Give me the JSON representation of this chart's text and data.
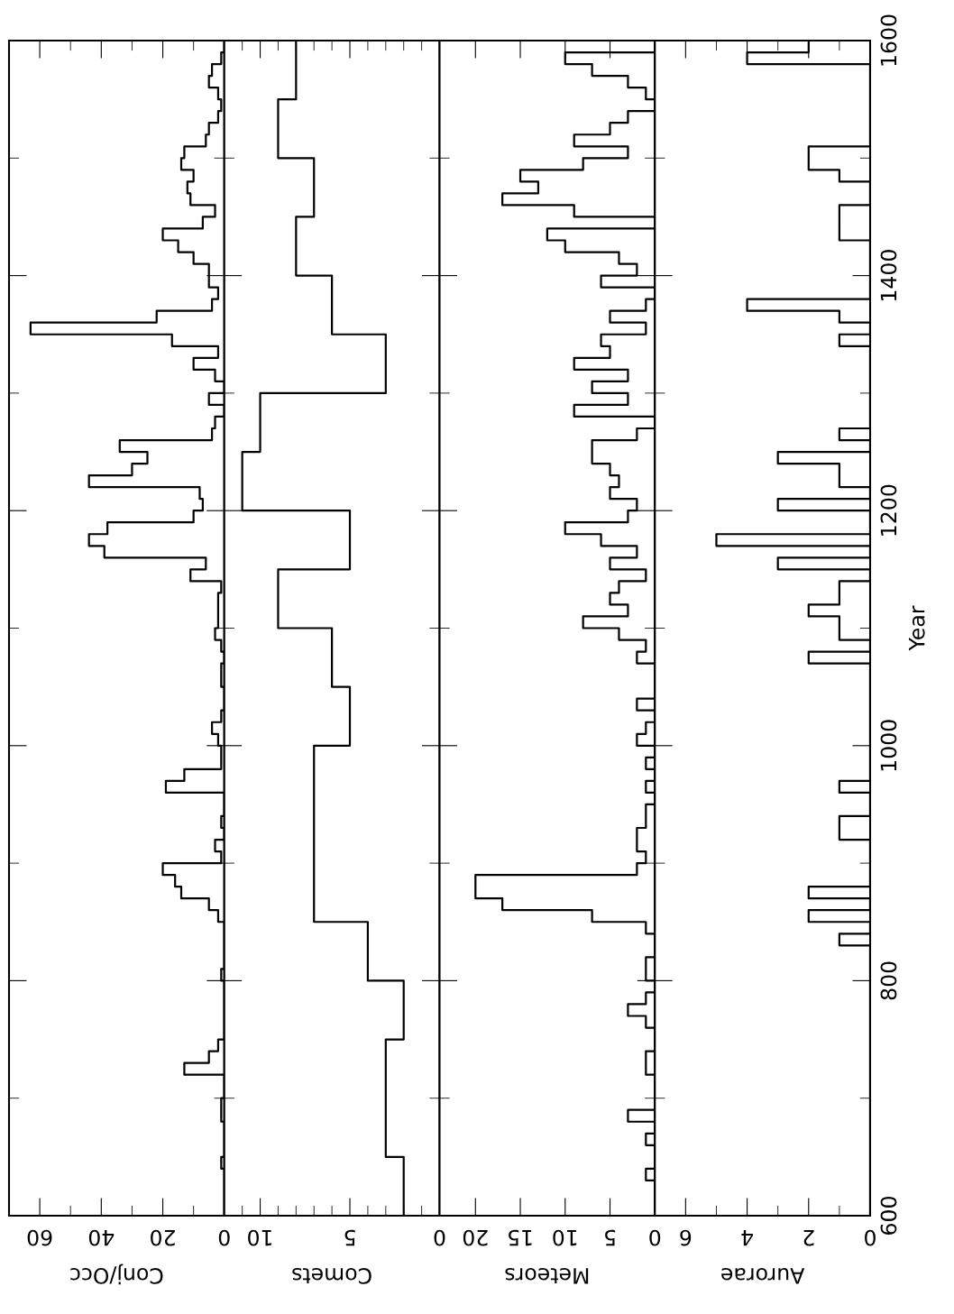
{
  "chart_data": [
    {
      "type": "histogram",
      "orientation": "horizontal",
      "xlabel": "Conj/Occ",
      "color": "#000000",
      "tick_labels": "x",
      "bins": [
        600,
        610,
        620,
        630,
        640,
        650,
        660,
        670,
        680,
        690,
        700,
        710,
        720,
        730,
        740,
        750,
        760,
        770,
        780,
        790,
        800,
        810,
        820,
        830,
        840,
        850,
        860,
        870,
        880,
        890,
        900,
        910,
        920,
        930,
        940,
        950,
        960,
        970,
        980,
        990,
        1000,
        1010,
        1020,
        1030,
        1040,
        1050,
        1060,
        1070,
        1080,
        1090,
        1100,
        1110,
        1120,
        1130,
        1140,
        1150,
        1160,
        1170,
        1180,
        1190,
        1200,
        1210,
        1220,
        1230,
        1240,
        1250,
        1260,
        1270,
        1280,
        1290,
        1300,
        1310,
        1320,
        1330,
        1340,
        1350,
        1360,
        1370,
        1380,
        1390,
        1400,
        1410,
        1420,
        1430,
        1440,
        1450,
        1460,
        1470,
        1480,
        1490,
        1500,
        1510,
        1520,
        1530,
        1540,
        1550,
        1560,
        1570,
        1580,
        1590,
        1600
      ],
      "values": [
        0,
        0,
        0,
        0,
        1,
        0,
        0,
        0,
        1,
        1,
        0,
        0,
        13,
        5,
        2,
        0,
        0,
        0,
        0,
        0,
        1,
        0,
        0,
        0,
        0,
        2,
        5,
        14,
        16,
        20,
        1,
        3,
        0,
        1,
        0,
        0,
        19,
        13,
        1,
        1,
        2,
        4,
        1,
        0,
        0,
        1,
        1,
        0,
        1,
        3,
        2,
        2,
        2,
        1,
        11,
        6,
        39,
        44,
        38,
        10,
        7,
        8,
        44,
        30,
        25,
        34,
        4,
        3,
        0,
        5,
        0,
        3,
        10,
        2,
        17,
        63,
        22,
        4,
        2,
        5,
        5,
        10,
        15,
        20,
        7,
        3,
        11,
        12,
        10,
        14,
        13,
        6,
        5,
        2,
        1,
        2,
        5,
        4,
        1,
        0
      ],
      "xlim": [
        70,
        0
      ],
      "xticks": [
        0,
        {
          "value": 10,
          "label": null
        },
        20,
        {
          "value": 30,
          "label": null
        },
        40,
        {
          "value": 50,
          "label": null
        },
        60
      ],
      "ylim": [
        600,
        1600
      ],
      "yticks": [
        600,
        {
          "value": 700,
          "label": null
        },
        800,
        {
          "value": 900,
          "label": null
        },
        1000,
        {
          "value": 1100,
          "label": null
        },
        1200,
        {
          "value": 1300,
          "label": null
        },
        1400,
        {
          "value": 1500,
          "label": null
        },
        1600
      ]
    },
    {
      "type": "histogram",
      "orientation": "horizontal",
      "xlabel": "Comets",
      "color": "#000000",
      "tick_labels": "x",
      "bins": [
        600,
        650,
        700,
        750,
        800,
        850,
        900,
        950,
        1000,
        1050,
        1100,
        1150,
        1200,
        1250,
        1300,
        1350,
        1400,
        1450,
        1500,
        1550,
        1600
      ],
      "values": [
        2,
        3,
        3,
        2,
        4,
        7,
        7,
        7,
        5,
        6,
        9,
        5,
        11,
        10,
        3,
        6,
        8,
        7,
        9,
        8
      ],
      "xlim": [
        12,
        0
      ],
      "xticks": [
        0,
        {
          "value": 1,
          "label": null
        },
        {
          "value": 2,
          "label": null
        },
        {
          "value": 3,
          "label": null
        },
        {
          "value": 4,
          "label": null
        },
        5,
        {
          "value": 6,
          "label": null
        },
        {
          "value": 7,
          "label": null
        },
        {
          "value": 8,
          "label": null
        },
        {
          "value": 9,
          "label": null
        },
        10,
        {
          "value": 11,
          "label": null
        }
      ],
      "ylim": [
        600,
        1600
      ],
      "yticks": [
        600,
        {
          "value": 700,
          "label": null
        },
        800,
        {
          "value": 900,
          "label": null
        },
        1000,
        {
          "value": 1100,
          "label": null
        },
        1200,
        {
          "value": 1300,
          "label": null
        },
        1400,
        {
          "value": 1500,
          "label": null
        },
        1600
      ]
    },
    {
      "type": "histogram",
      "orientation": "horizontal",
      "xlabel": "Meteors",
      "color": "#000000",
      "tick_labels": "x",
      "bins": [
        600,
        610,
        620,
        630,
        640,
        650,
        660,
        670,
        680,
        690,
        700,
        710,
        720,
        730,
        740,
        750,
        760,
        770,
        780,
        790,
        800,
        810,
        820,
        830,
        840,
        850,
        860,
        870,
        880,
        890,
        900,
        910,
        920,
        930,
        940,
        950,
        960,
        970,
        980,
        990,
        1000,
        1010,
        1020,
        1030,
        1040,
        1050,
        1060,
        1070,
        1080,
        1090,
        1100,
        1110,
        1120,
        1130,
        1140,
        1150,
        1160,
        1170,
        1180,
        1190,
        1200,
        1210,
        1220,
        1230,
        1240,
        1250,
        1260,
        1270,
        1280,
        1290,
        1300,
        1310,
        1320,
        1330,
        1340,
        1350,
        1360,
        1370,
        1380,
        1390,
        1400,
        1410,
        1420,
        1430,
        1440,
        1450,
        1460,
        1470,
        1480,
        1490,
        1500,
        1510,
        1520,
        1530,
        1540,
        1550,
        1560,
        1570,
        1580,
        1590,
        1600
      ],
      "values": [
        0,
        0,
        0,
        1,
        0,
        0,
        1,
        0,
        3,
        0,
        0,
        0,
        1,
        1,
        0,
        0,
        1,
        3,
        1,
        0,
        1,
        1,
        0,
        0,
        1,
        7,
        17,
        20,
        20,
        2,
        1,
        2,
        2,
        1,
        1,
        0,
        1,
        0,
        1,
        0,
        2,
        1,
        0,
        2,
        0,
        0,
        0,
        2,
        1,
        4,
        8,
        3,
        5,
        4,
        1,
        5,
        2,
        6,
        10,
        3,
        2,
        5,
        4,
        5,
        7,
        7,
        2,
        0,
        9,
        3,
        7,
        3,
        9,
        5,
        6,
        1,
        5,
        1,
        0,
        6,
        2,
        4,
        10,
        12,
        0,
        9,
        17,
        13,
        15,
        8,
        3,
        9,
        5,
        3,
        0,
        1,
        3,
        7,
        10,
        0
      ],
      "xlim": [
        24,
        0
      ],
      "xticks": [
        0,
        5,
        10,
        15,
        20
      ],
      "ylim": [
        600,
        1600
      ],
      "yticks": [
        600,
        {
          "value": 700,
          "label": null
        },
        800,
        {
          "value": 900,
          "label": null
        },
        1000,
        {
          "value": 1100,
          "label": null
        },
        1200,
        {
          "value": 1300,
          "label": null
        },
        1400,
        {
          "value": 1500,
          "label": null
        },
        1600
      ]
    },
    {
      "type": "histogram",
      "orientation": "horizontal",
      "xlabel": "Aurorae",
      "ylabel": "Year",
      "color": "#000000",
      "bins": [
        600,
        610,
        620,
        630,
        640,
        650,
        660,
        670,
        680,
        690,
        700,
        710,
        720,
        730,
        740,
        750,
        760,
        770,
        780,
        790,
        800,
        810,
        820,
        830,
        840,
        850,
        860,
        870,
        880,
        890,
        900,
        910,
        920,
        930,
        940,
        950,
        960,
        970,
        980,
        990,
        1000,
        1010,
        1020,
        1030,
        1040,
        1050,
        1060,
        1070,
        1080,
        1090,
        1100,
        1110,
        1120,
        1130,
        1140,
        1150,
        1160,
        1170,
        1180,
        1190,
        1200,
        1210,
        1220,
        1230,
        1240,
        1250,
        1260,
        1270,
        1280,
        1290,
        1300,
        1310,
        1320,
        1330,
        1340,
        1350,
        1360,
        1370,
        1380,
        1390,
        1400,
        1410,
        1420,
        1430,
        1440,
        1450,
        1460,
        1470,
        1480,
        1490,
        1500,
        1510,
        1520,
        1530,
        1540,
        1550,
        1560,
        1570,
        1580,
        1590,
        1600
      ],
      "values": [
        0,
        0,
        0,
        0,
        0,
        0,
        0,
        0,
        0,
        0,
        0,
        0,
        0,
        0,
        0,
        0,
        0,
        0,
        0,
        0,
        0,
        0,
        0,
        1,
        0,
        2,
        0,
        2,
        0,
        0,
        0,
        0,
        1,
        1,
        0,
        0,
        1,
        0,
        0,
        0,
        0,
        0,
        0,
        0,
        0,
        0,
        0,
        2,
        0,
        1,
        1,
        2,
        1,
        1,
        0,
        3,
        0,
        5,
        0,
        0,
        3,
        0,
        1,
        1,
        3,
        0,
        1,
        0,
        0,
        0,
        0,
        0,
        0,
        0,
        1,
        0,
        1,
        4,
        0,
        0,
        0,
        0,
        0,
        1,
        1,
        1,
        0,
        0,
        1,
        2,
        2,
        0,
        0,
        0,
        0,
        0,
        0,
        0,
        4,
        2
      ],
      "xlim": [
        7,
        0
      ],
      "xticks": [
        0,
        {
          "value": 1,
          "label": null
        },
        2,
        {
          "value": 3,
          "label": null
        },
        4,
        {
          "value": 5,
          "label": null
        },
        6
      ],
      "ylim": [
        600,
        1600
      ],
      "yticks": [
        600,
        {
          "value": 700,
          "label": null
        },
        800,
        {
          "value": 900,
          "label": null
        },
        1000,
        {
          "value": 1100,
          "label": null
        },
        1200,
        {
          "value": 1300,
          "label": null
        },
        1400,
        {
          "value": 1500,
          "label": null
        },
        1600
      ]
    }
  ]
}
